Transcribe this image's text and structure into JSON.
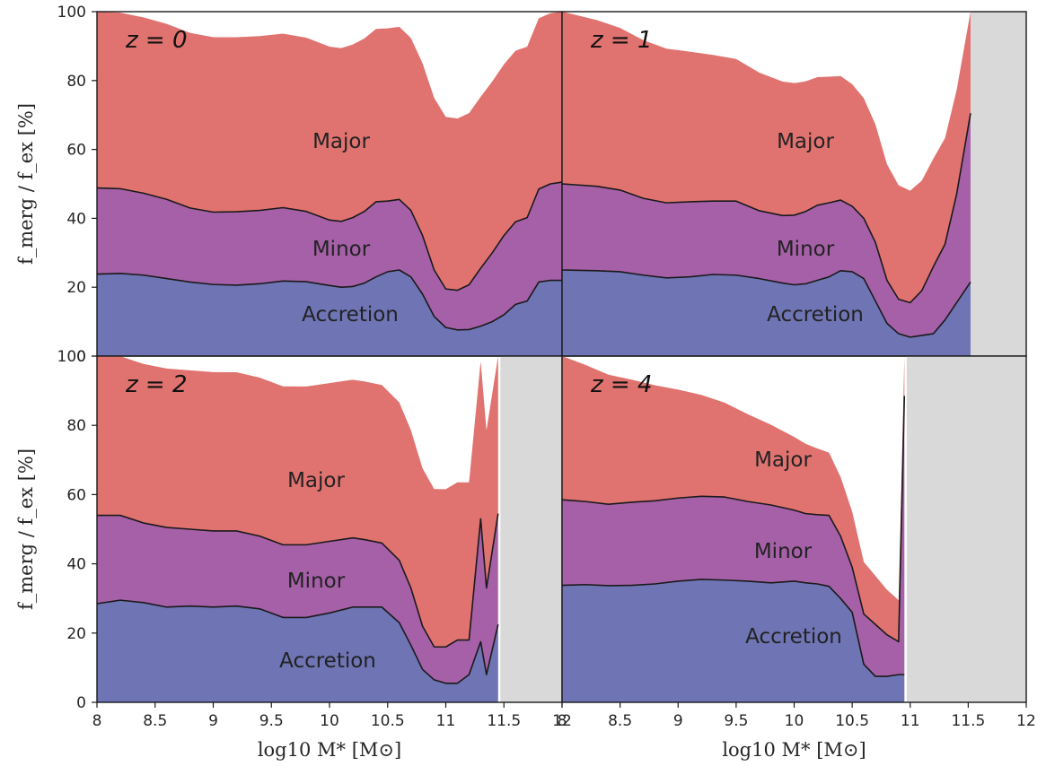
{
  "chart_data": [
    {
      "type": "area",
      "stacked": true,
      "panel_label": "z = 0",
      "xlabel": "log10 M* [M⊙]",
      "ylabel": "f_merg / f_ex [%]",
      "xlim": [
        8,
        12
      ],
      "ylim": [
        0,
        100
      ],
      "mass_limit": null,
      "region_labels": {
        "major": "Major",
        "minor": "Minor",
        "accretion": "Accretion"
      },
      "series": [
        {
          "name": "Accretion",
          "x": [
            8.0,
            8.2,
            8.4,
            8.6,
            8.8,
            9.0,
            9.2,
            9.4,
            9.6,
            9.8,
            10.0,
            10.1,
            10.2,
            10.3,
            10.4,
            10.5,
            10.6,
            10.7,
            10.8,
            10.9,
            11.0,
            11.1,
            11.2,
            11.3,
            11.4,
            11.5,
            11.6,
            11.7,
            11.8,
            11.9,
            12.0
          ],
          "y": [
            23.8,
            24.0,
            23.5,
            22.5,
            21.5,
            20.8,
            20.6,
            21.0,
            21.8,
            21.6,
            20.5,
            20.0,
            20.2,
            21.2,
            23.0,
            24.5,
            25.0,
            23.0,
            18.0,
            11.5,
            8.3,
            7.6,
            7.7,
            8.7,
            10.0,
            12.0,
            15.0,
            16.0,
            21.5,
            22.0,
            22.0
          ]
        },
        {
          "name": "Minor",
          "x": [
            8.0,
            8.2,
            8.4,
            8.6,
            8.8,
            9.0,
            9.2,
            9.4,
            9.6,
            9.8,
            10.0,
            10.1,
            10.2,
            10.3,
            10.4,
            10.5,
            10.6,
            10.7,
            10.8,
            10.9,
            11.0,
            11.1,
            11.2,
            11.3,
            11.4,
            11.5,
            11.6,
            11.7,
            11.8,
            11.9,
            12.0
          ],
          "y": [
            25.0,
            24.6,
            23.8,
            23.0,
            21.5,
            21.0,
            21.3,
            21.3,
            21.3,
            20.4,
            19.0,
            19.1,
            20.0,
            20.8,
            21.8,
            20.5,
            20.5,
            19.3,
            17.0,
            13.5,
            11.2,
            11.5,
            13.0,
            16.8,
            20.0,
            23.0,
            24.0,
            24.2,
            27.0,
            28.0,
            28.5
          ]
        },
        {
          "name": "Major",
          "x": [
            8.0,
            12.0
          ],
          "y": [
            51.2,
            49.5
          ]
        }
      ]
    },
    {
      "type": "area",
      "stacked": true,
      "panel_label": "z = 1",
      "xlabel": "log10 M* [M⊙]",
      "ylabel": "",
      "xlim": [
        8,
        12
      ],
      "ylim": [
        0,
        100
      ],
      "mass_limit": 11.52,
      "region_labels": {
        "major": "Major",
        "minor": "Minor",
        "accretion": "Accretion"
      },
      "series": [
        {
          "name": "Accretion",
          "x": [
            8.0,
            8.3,
            8.5,
            8.7,
            8.9,
            9.1,
            9.3,
            9.5,
            9.7,
            9.9,
            10.0,
            10.1,
            10.2,
            10.3,
            10.4,
            10.5,
            10.6,
            10.7,
            10.8,
            10.9,
            11.0,
            11.1,
            11.2,
            11.3,
            11.4,
            11.52
          ],
          "y": [
            25.0,
            24.8,
            24.5,
            23.5,
            22.7,
            23.0,
            23.7,
            23.5,
            22.5,
            21.2,
            20.7,
            21.0,
            22.0,
            23.0,
            24.8,
            24.5,
            22.5,
            16.0,
            9.5,
            6.5,
            5.5,
            6.0,
            6.5,
            10.5,
            15.5,
            21.5
          ]
        },
        {
          "name": "Minor",
          "x": [
            8.0,
            8.3,
            8.5,
            8.7,
            8.9,
            9.1,
            9.3,
            9.5,
            9.7,
            9.9,
            10.0,
            10.1,
            10.2,
            10.3,
            10.4,
            10.5,
            10.6,
            10.7,
            10.8,
            10.9,
            11.0,
            11.1,
            11.2,
            11.3,
            11.4,
            11.52
          ],
          "y": [
            25.0,
            24.5,
            23.7,
            22.3,
            21.8,
            21.8,
            21.3,
            21.5,
            19.7,
            19.6,
            20.2,
            21.0,
            21.8,
            21.5,
            20.5,
            19.0,
            17.5,
            17.0,
            12.5,
            10.0,
            10.0,
            13.0,
            19.5,
            22.0,
            31.5,
            49.0
          ]
        },
        {
          "name": "Major",
          "x": [
            8.0,
            11.52
          ],
          "y": [
            50.0,
            29.5
          ]
        }
      ]
    },
    {
      "type": "area",
      "stacked": true,
      "panel_label": "z = 2",
      "xlabel": "log10 M* [M⊙]",
      "ylabel": "f_merg / f_ex [%]",
      "xlim": [
        8,
        12
      ],
      "ylim": [
        0,
        100
      ],
      "mass_limit": 11.47,
      "region_labels": {
        "major": "Major",
        "minor": "Minor",
        "accretion": "Accretion"
      },
      "series": [
        {
          "name": "Accretion",
          "x": [
            8.0,
            8.2,
            8.4,
            8.6,
            8.8,
            9.0,
            9.2,
            9.4,
            9.6,
            9.8,
            10.0,
            10.2,
            10.3,
            10.45,
            10.6,
            10.7,
            10.8,
            10.9,
            11.0,
            11.1,
            11.2,
            11.3,
            11.35,
            11.45
          ],
          "y": [
            28.5,
            29.5,
            28.8,
            27.5,
            27.8,
            27.5,
            27.8,
            27.0,
            24.5,
            24.5,
            25.8,
            27.5,
            27.5,
            27.5,
            23.0,
            16.5,
            9.5,
            6.5,
            5.5,
            5.5,
            8.0,
            17.5,
            8.0,
            22.5
          ]
        },
        {
          "name": "Minor",
          "x": [
            8.0,
            8.2,
            8.4,
            8.6,
            8.8,
            9.0,
            9.2,
            9.4,
            9.6,
            9.8,
            10.0,
            10.2,
            10.3,
            10.45,
            10.6,
            10.7,
            10.8,
            10.9,
            11.0,
            11.1,
            11.2,
            11.3,
            11.35,
            11.45
          ],
          "y": [
            25.5,
            24.5,
            23.0,
            23.0,
            22.2,
            22.0,
            21.7,
            21.0,
            21.0,
            21.0,
            20.7,
            20.0,
            19.5,
            18.5,
            18.0,
            16.5,
            12.5,
            9.5,
            10.5,
            12.5,
            10.0,
            35.5,
            25.0,
            32.0
          ]
        },
        {
          "name": "Major",
          "x": [
            8.0,
            11.45
          ],
          "y": [
            46.0,
            45.5
          ]
        }
      ]
    },
    {
      "type": "area",
      "stacked": true,
      "panel_label": "z = 4",
      "xlabel": "log10 M* [M⊙]",
      "ylabel": "",
      "xlim": [
        8,
        12
      ],
      "ylim": [
        0,
        100
      ],
      "mass_limit": 10.97,
      "region_labels": {
        "major": "Major",
        "minor": "Minor",
        "accretion": "Accretion"
      },
      "series": [
        {
          "name": "Accretion",
          "x": [
            8.0,
            8.2,
            8.4,
            8.6,
            8.8,
            9.0,
            9.2,
            9.4,
            9.6,
            9.8,
            10.0,
            10.1,
            10.2,
            10.3,
            10.4,
            10.5,
            10.6,
            10.7,
            10.8,
            10.9,
            10.95
          ],
          "y": [
            33.8,
            34.0,
            33.7,
            33.8,
            34.2,
            35.0,
            35.5,
            35.3,
            35.0,
            34.5,
            35.0,
            34.5,
            34.2,
            33.5,
            30.0,
            26.0,
            11.0,
            7.5,
            7.5,
            8.0,
            8.0
          ]
        },
        {
          "name": "Minor",
          "x": [
            8.0,
            8.2,
            8.4,
            8.6,
            8.8,
            9.0,
            9.2,
            9.4,
            9.6,
            9.8,
            10.0,
            10.1,
            10.2,
            10.3,
            10.4,
            10.5,
            10.6,
            10.7,
            10.8,
            10.9,
            10.95
          ],
          "y": [
            24.7,
            24.0,
            23.5,
            24.0,
            24.0,
            24.0,
            24.0,
            24.0,
            23.0,
            22.5,
            20.5,
            20.0,
            20.0,
            20.5,
            18.0,
            13.0,
            14.5,
            15.0,
            12.0,
            9.5,
            80.5
          ]
        },
        {
          "name": "Major",
          "x": [
            8.0,
            10.95
          ],
          "y": [
            41.5,
            11.5
          ]
        }
      ]
    }
  ],
  "xticks": [
    "8",
    "8.5",
    "9",
    "9.5",
    "10",
    "10.5",
    "11",
    "11.5",
    "12"
  ],
  "yticks": [
    "0",
    "20",
    "40",
    "60",
    "80",
    "100"
  ],
  "colors": {
    "major": "#e07370",
    "minor": "#a660a8",
    "accretion": "#6e74b4",
    "excluded": "#d9d9d9",
    "line": "#1a1a1a"
  }
}
